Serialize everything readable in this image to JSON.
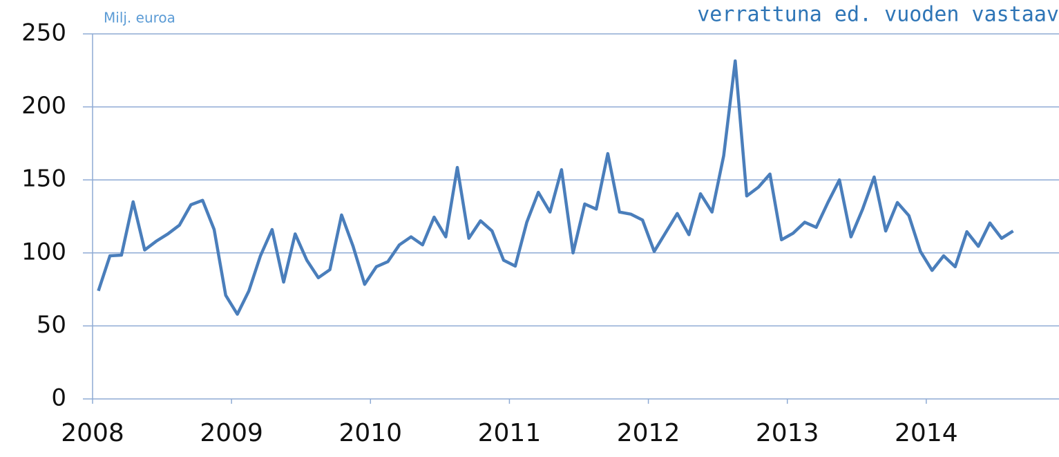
{
  "chart_data": {
    "type": "line",
    "title": "verrattuna ed. vuoden vastaav",
    "y_label": "Milj. euroa",
    "x": [
      2008.042,
      2008.125,
      2008.208,
      2008.292,
      2008.375,
      2008.458,
      2008.542,
      2008.625,
      2008.708,
      2008.792,
      2008.875,
      2008.958,
      2009.042,
      2009.125,
      2009.208,
      2009.292,
      2009.375,
      2009.458,
      2009.542,
      2009.625,
      2009.708,
      2009.792,
      2009.875,
      2009.958,
      2010.042,
      2010.125,
      2010.208,
      2010.292,
      2010.375,
      2010.458,
      2010.542,
      2010.625,
      2010.708,
      2010.792,
      2010.875,
      2010.958,
      2011.042,
      2011.125,
      2011.208,
      2011.292,
      2011.375,
      2011.458,
      2011.542,
      2011.625,
      2011.708,
      2011.792,
      2011.875,
      2011.958,
      2012.042,
      2012.125,
      2012.208,
      2012.292,
      2012.375,
      2012.458,
      2012.542,
      2012.625,
      2012.708,
      2012.792,
      2012.875,
      2012.958,
      2013.042,
      2013.125,
      2013.208,
      2013.292,
      2013.375,
      2013.458,
      2013.542,
      2013.625,
      2013.708,
      2013.792,
      2013.875,
      2013.958,
      2014.042,
      2014.125,
      2014.208,
      2014.292,
      2014.375,
      2014.458,
      2014.542,
      2014.625
    ],
    "series": [
      {
        "color": "#4a7ebb",
        "values": [
          74,
          98,
          98.5,
          135,
          102,
          108,
          113,
          119,
          133,
          136,
          116,
          71,
          58,
          74,
          98,
          116,
          80,
          113,
          95,
          83,
          88.5,
          126,
          104.5,
          78.5,
          90.5,
          94,
          105.5,
          111,
          105.5,
          124.5,
          111,
          158.5,
          110,
          122,
          115,
          95,
          91,
          121,
          141.5,
          128,
          157,
          100,
          133.5,
          130,
          168,
          128,
          126.5,
          122.5,
          101,
          114,
          127,
          112.5,
          140.5,
          128,
          166.5,
          231.5,
          139,
          145,
          154,
          109,
          113.5,
          121,
          117.5,
          134.5,
          150,
          111,
          130,
          152,
          115,
          134.5,
          125.5,
          101,
          88,
          98,
          90.5,
          114.5,
          104.5,
          120.5,
          110,
          115
        ]
      }
    ],
    "xlim": [
      2008,
      2015
    ],
    "xticks": [
      2008,
      2009,
      2010,
      2011,
      2012,
      2013,
      2014
    ],
    "ylim": [
      0,
      250
    ],
    "yticks": [
      0,
      50,
      100,
      150,
      200,
      250
    ],
    "grid": true
  }
}
